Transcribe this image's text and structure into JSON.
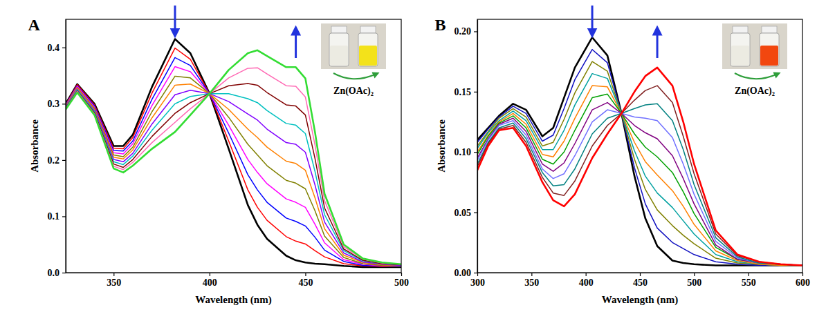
{
  "chart_data": [
    {
      "type": "line",
      "label": "A",
      "x_label": "Wavelength (nm)",
      "y_label": "Absorbance",
      "annotation": "Zn(OAc)₂",
      "inset_colors": [
        "#ecebe2",
        "#f3e21a"
      ],
      "xlim": [
        325,
        500
      ],
      "ylim": [
        0,
        0.45
      ],
      "xticks": [
        350,
        400,
        450,
        500
      ],
      "yticks": [
        {
          "value": 0,
          "label": "0.0"
        },
        0.1,
        0.2,
        0.3,
        0.4
      ],
      "arrows": [
        {
          "x": 382,
          "direction": "down"
        },
        {
          "x": 445,
          "direction": "up"
        }
      ],
      "x": [
        325,
        331,
        340,
        350,
        355,
        360,
        370,
        382,
        390,
        400,
        410,
        420,
        425,
        430,
        440,
        445,
        450,
        455,
        460,
        470,
        480,
        490,
        500
      ],
      "series": [
        {
          "color": "#000000",
          "values": [
            0.3,
            0.335,
            0.3,
            0.225,
            0.225,
            0.245,
            0.33,
            0.415,
            0.39,
            0.318,
            0.22,
            0.12,
            0.085,
            0.06,
            0.03,
            0.022,
            0.018,
            0.016,
            0.015,
            0.012,
            0.01,
            0.01,
            0.01
          ]
        },
        {
          "color": "#ff0000",
          "values": [
            0.299,
            0.334,
            0.298,
            0.221,
            0.22,
            0.24,
            0.319,
            0.399,
            0.379,
            0.318,
            0.234,
            0.147,
            0.116,
            0.093,
            0.064,
            0.056,
            0.051,
            0.039,
            0.028,
            0.016,
            0.012,
            0.011,
            0.011
          ]
        },
        {
          "color": "#0000ff",
          "values": [
            0.298,
            0.332,
            0.296,
            0.217,
            0.216,
            0.234,
            0.308,
            0.382,
            0.368,
            0.318,
            0.248,
            0.174,
            0.147,
            0.125,
            0.097,
            0.091,
            0.083,
            0.063,
            0.04,
            0.02,
            0.013,
            0.012,
            0.011
          ]
        },
        {
          "color": "#ff00ff",
          "values": [
            0.297,
            0.331,
            0.294,
            0.213,
            0.211,
            0.229,
            0.297,
            0.366,
            0.357,
            0.318,
            0.262,
            0.201,
            0.178,
            0.158,
            0.131,
            0.125,
            0.116,
            0.086,
            0.053,
            0.023,
            0.015,
            0.012,
            0.012
          ]
        },
        {
          "color": "#808000",
          "values": [
            0.296,
            0.329,
            0.292,
            0.209,
            0.206,
            0.223,
            0.286,
            0.349,
            0.346,
            0.318,
            0.276,
            0.228,
            0.209,
            0.19,
            0.164,
            0.159,
            0.149,
            0.11,
            0.065,
            0.027,
            0.016,
            0.013,
            0.012
          ]
        },
        {
          "color": "#ff8000",
          "values": [
            0.295,
            0.328,
            0.29,
            0.205,
            0.202,
            0.218,
            0.275,
            0.333,
            0.335,
            0.318,
            0.29,
            0.255,
            0.24,
            0.223,
            0.198,
            0.194,
            0.182,
            0.133,
            0.078,
            0.031,
            0.018,
            0.014,
            0.013
          ]
        },
        {
          "color": "#8000ff",
          "values": [
            0.294,
            0.326,
            0.288,
            0.201,
            0.197,
            0.212,
            0.264,
            0.316,
            0.324,
            0.318,
            0.304,
            0.282,
            0.271,
            0.255,
            0.231,
            0.228,
            0.214,
            0.156,
            0.09,
            0.035,
            0.019,
            0.015,
            0.013
          ]
        },
        {
          "color": "#00c0c0",
          "values": [
            0.293,
            0.325,
            0.286,
            0.197,
            0.192,
            0.207,
            0.253,
            0.3,
            0.313,
            0.318,
            0.318,
            0.309,
            0.302,
            0.288,
            0.265,
            0.262,
            0.247,
            0.18,
            0.103,
            0.039,
            0.021,
            0.016,
            0.014
          ]
        },
        {
          "color": "#800000",
          "values": [
            0.292,
            0.323,
            0.284,
            0.193,
            0.187,
            0.201,
            0.242,
            0.283,
            0.302,
            0.318,
            0.332,
            0.336,
            0.333,
            0.32,
            0.298,
            0.296,
            0.28,
            0.203,
            0.115,
            0.042,
            0.022,
            0.016,
            0.014
          ]
        },
        {
          "color": "#ff69b4",
          "values": [
            0.291,
            0.322,
            0.282,
            0.189,
            0.183,
            0.196,
            0.231,
            0.267,
            0.291,
            0.318,
            0.346,
            0.363,
            0.364,
            0.353,
            0.332,
            0.331,
            0.312,
            0.227,
            0.128,
            0.046,
            0.024,
            0.017,
            0.015
          ]
        },
        {
          "color": "#33dd33",
          "values": [
            0.29,
            0.32,
            0.28,
            0.185,
            0.178,
            0.19,
            0.22,
            0.25,
            0.28,
            0.318,
            0.36,
            0.39,
            0.395,
            0.385,
            0.365,
            0.365,
            0.345,
            0.25,
            0.14,
            0.05,
            0.025,
            0.018,
            0.015
          ]
        }
      ]
    },
    {
      "type": "line",
      "label": "B",
      "x_label": "Wavelength (nm)",
      "y_label": "Absorbance",
      "annotation": "Zn(OAc)₂",
      "inset_colors": [
        "#ecebe2",
        "#f2470f"
      ],
      "xlim": [
        300,
        600
      ],
      "ylim": [
        0,
        0.21
      ],
      "xticks": [
        300,
        350,
        400,
        450,
        500,
        550,
        600
      ],
      "yticks": [
        {
          "value": 0,
          "label": "0.00"
        },
        0.05,
        {
          "value": 0.1,
          "label": "0.10"
        },
        0.15,
        {
          "value": 0.2,
          "label": "0.20"
        }
      ],
      "arrows": [
        {
          "x": 406,
          "direction": "down"
        },
        {
          "x": 466,
          "direction": "up"
        }
      ],
      "x": [
        300,
        310,
        320,
        333,
        345,
        360,
        370,
        380,
        390,
        406,
        420,
        433,
        445,
        455,
        466,
        480,
        490,
        500,
        520,
        540,
        560,
        580,
        600
      ],
      "series": [
        {
          "color": "#000000",
          "values": [
            0.11,
            0.12,
            0.13,
            0.14,
            0.135,
            0.113,
            0.12,
            0.145,
            0.17,
            0.195,
            0.18,
            0.132,
            0.08,
            0.045,
            0.022,
            0.01,
            0.008,
            0.007,
            0.006,
            0.006,
            0.006,
            0.006,
            0.006
          ]
        },
        {
          "color": "#1010c0",
          "values": [
            0.108,
            0.119,
            0.129,
            0.138,
            0.132,
            0.109,
            0.114,
            0.136,
            0.16,
            0.185,
            0.174,
            0.132,
            0.087,
            0.057,
            0.037,
            0.025,
            0.02,
            0.015,
            0.009,
            0.007,
            0.006,
            0.006,
            0.006
          ]
        },
        {
          "color": "#808000",
          "values": [
            0.105,
            0.117,
            0.128,
            0.136,
            0.129,
            0.105,
            0.108,
            0.127,
            0.149,
            0.175,
            0.167,
            0.132,
            0.094,
            0.069,
            0.052,
            0.039,
            0.031,
            0.024,
            0.012,
            0.008,
            0.007,
            0.006,
            0.006
          ]
        },
        {
          "color": "#00a0a0",
          "values": [
            0.103,
            0.116,
            0.126,
            0.134,
            0.126,
            0.102,
            0.102,
            0.118,
            0.139,
            0.165,
            0.161,
            0.132,
            0.101,
            0.08,
            0.066,
            0.054,
            0.043,
            0.032,
            0.015,
            0.009,
            0.007,
            0.006,
            0.006
          ]
        },
        {
          "color": "#ff8000",
          "values": [
            0.1,
            0.114,
            0.125,
            0.132,
            0.123,
            0.098,
            0.096,
            0.109,
            0.128,
            0.155,
            0.154,
            0.132,
            0.108,
            0.092,
            0.081,
            0.068,
            0.055,
            0.04,
            0.018,
            0.01,
            0.007,
            0.006,
            0.006
          ]
        },
        {
          "color": "#00a000",
          "values": [
            0.098,
            0.113,
            0.124,
            0.13,
            0.12,
            0.094,
            0.09,
            0.1,
            0.118,
            0.145,
            0.148,
            0.132,
            0.115,
            0.104,
            0.096,
            0.083,
            0.067,
            0.049,
            0.021,
            0.011,
            0.008,
            0.007,
            0.006
          ]
        },
        {
          "color": "#800080",
          "values": [
            0.095,
            0.111,
            0.123,
            0.128,
            0.117,
            0.09,
            0.084,
            0.091,
            0.107,
            0.135,
            0.141,
            0.132,
            0.122,
            0.116,
            0.111,
            0.097,
            0.078,
            0.057,
            0.023,
            0.011,
            0.008,
            0.007,
            0.006
          ]
        },
        {
          "color": "#7070ff",
          "values": [
            0.093,
            0.11,
            0.122,
            0.126,
            0.114,
            0.086,
            0.078,
            0.082,
            0.097,
            0.125,
            0.135,
            0.132,
            0.129,
            0.128,
            0.126,
            0.112,
            0.09,
            0.065,
            0.026,
            0.012,
            0.008,
            0.007,
            0.006
          ]
        },
        {
          "color": "#008080",
          "values": [
            0.09,
            0.108,
            0.12,
            0.124,
            0.111,
            0.083,
            0.072,
            0.073,
            0.086,
            0.115,
            0.128,
            0.132,
            0.136,
            0.139,
            0.14,
            0.126,
            0.102,
            0.073,
            0.029,
            0.013,
            0.008,
            0.007,
            0.006
          ]
        },
        {
          "color": "#802020",
          "values": [
            0.088,
            0.107,
            0.119,
            0.122,
            0.108,
            0.079,
            0.066,
            0.064,
            0.076,
            0.105,
            0.122,
            0.132,
            0.143,
            0.151,
            0.155,
            0.141,
            0.113,
            0.082,
            0.032,
            0.014,
            0.009,
            0.007,
            0.006
          ]
        },
        {
          "color": "#ff0000",
          "values": [
            0.085,
            0.105,
            0.118,
            0.12,
            0.105,
            0.075,
            0.06,
            0.055,
            0.065,
            0.095,
            0.115,
            0.132,
            0.15,
            0.163,
            0.17,
            0.155,
            0.125,
            0.09,
            0.035,
            0.015,
            0.009,
            0.007,
            0.006
          ]
        }
      ]
    }
  ]
}
